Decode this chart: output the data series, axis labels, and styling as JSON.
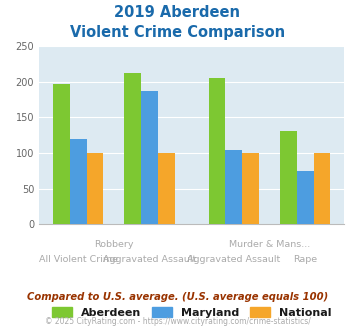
{
  "title_line1": "2019 Aberdeen",
  "title_line2": "Violent Crime Comparison",
  "groups": [
    {
      "label_top": "",
      "label_bottom": "All Violent Crime",
      "Aberdeen": 197,
      "Maryland": 120,
      "National": 100
    },
    {
      "label_top": "Robbery",
      "label_bottom": "Aggravated Assault",
      "Aberdeen": 212,
      "Maryland": 187,
      "National": 100
    },
    {
      "label_top": "",
      "label_bottom": "Aggravated Assault",
      "Aberdeen": 205,
      "Maryland": 105,
      "National": 100
    },
    {
      "label_top": "Murder & Mans...",
      "label_bottom": "Rape",
      "Aberdeen": 131,
      "Maryland": 75,
      "National": 100
    }
  ],
  "pair_labels_top": [
    "Robbery",
    "Murder & Mans..."
  ],
  "pair_centers": [
    1,
    3
  ],
  "colors": {
    "Aberdeen": "#7dc832",
    "Maryland": "#4d9de0",
    "National": "#f5a62a"
  },
  "ylim": [
    0,
    250
  ],
  "yticks": [
    0,
    50,
    100,
    150,
    200,
    250
  ],
  "background_color": "#ddeaf2",
  "title_color": "#1a6aab",
  "label_color": "#aaaaaa",
  "legend_label_color": "#1a1a1a",
  "footer_text": "Compared to U.S. average. (U.S. average equals 100)",
  "credit_text": "© 2025 CityRating.com - https://www.cityrating.com/crime-statistics/",
  "footer_color": "#993300",
  "credit_color": "#aaaaaa"
}
